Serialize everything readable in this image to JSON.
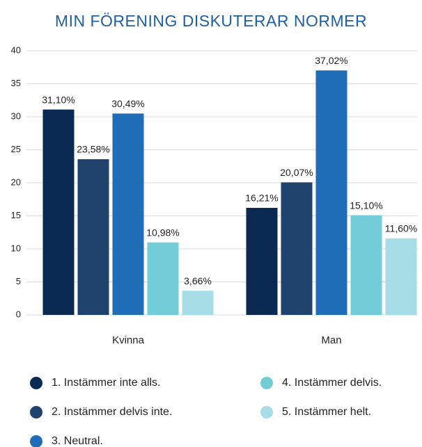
{
  "chart_data": {
    "type": "bar",
    "title": "MIN FÖRENING DISKUTERAR NORMER",
    "categories": [
      "Kvinna",
      "Man"
    ],
    "series": [
      {
        "name": "1. Instämmer inte alls.",
        "color": "#0b2a52",
        "values": [
          31.1,
          16.21
        ],
        "value_labels": [
          "31,10%",
          "16,21%"
        ]
      },
      {
        "name": "2. Instämmer delvis inte.",
        "color": "#1f436d",
        "values": [
          23.58,
          20.07
        ],
        "value_labels": [
          "23,58%",
          "20,07%"
        ]
      },
      {
        "name": "3. Neutral.",
        "color": "#1f6db6",
        "values": [
          30.49,
          37.02
        ],
        "value_labels": [
          "30,49%",
          "37,02%"
        ]
      },
      {
        "name": "4. Instämmer delvis.",
        "color": "#73cdd8",
        "values": [
          10.98,
          15.1
        ],
        "value_labels": [
          "10,98%",
          "15,10%"
        ]
      },
      {
        "name": "5. Instämmer helt.",
        "color": "#a7dde6",
        "values": [
          3.66,
          11.6
        ],
        "value_labels": [
          "3,66%",
          "11,60%"
        ]
      }
    ],
    "ylim": [
      0,
      40
    ],
    "yticks": [
      0,
      5,
      10,
      15,
      20,
      25,
      30,
      35,
      40
    ],
    "grid": true
  }
}
